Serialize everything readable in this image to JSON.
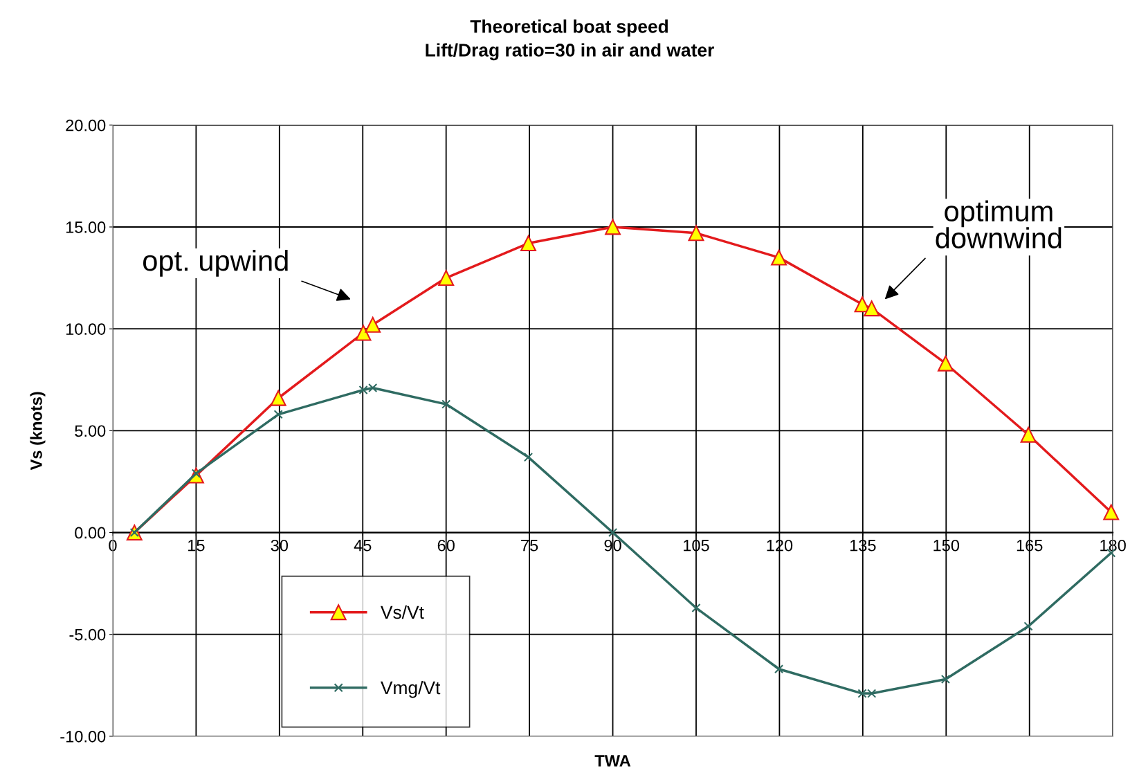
{
  "chart_data": {
    "type": "line",
    "title": "Theoretical boat speed",
    "subtitle": "Lift/Drag ratio=30 in air and water",
    "xlabel": "TWA",
    "ylabel": "Vs (knots)",
    "xlim": [
      0,
      180
    ],
    "xticks": [
      0,
      15,
      30,
      45,
      60,
      75,
      90,
      105,
      120,
      135,
      150,
      165,
      180
    ],
    "ylim": [
      -10,
      20
    ],
    "yticks": [
      {
        "value": -10,
        "label": "-10.00"
      },
      {
        "value": -5,
        "label": "-5.00"
      },
      {
        "value": 0,
        "label": "0.00"
      },
      {
        "value": 5,
        "label": "5.00"
      },
      {
        "value": 10,
        "label": "10.00"
      },
      {
        "value": 15,
        "label": "15.00"
      },
      {
        "value": 20,
        "label": "20.00"
      }
    ],
    "grid": true,
    "legend": "bottom left",
    "x": [
      3.9,
      15,
      29.8,
      45.1,
      46.8,
      60,
      74.8,
      90,
      105,
      119.9,
      134.9,
      136.6,
      149.9,
      164.8,
      179.7
    ],
    "series": [
      {
        "name": "Vs/Vt",
        "color": "#e31a1c",
        "marker": "triangle",
        "values": [
          0,
          2.8,
          6.6,
          9.8,
          10.2,
          12.5,
          14.2,
          15.0,
          14.7,
          13.5,
          11.2,
          11.0,
          8.3,
          4.8,
          1.0
        ]
      },
      {
        "name": "Vmg/Vt",
        "color": "#2f6b62",
        "marker": "cross",
        "values": [
          0,
          2.9,
          5.8,
          7.0,
          7.1,
          6.3,
          3.7,
          0,
          -3.7,
          -6.7,
          -7.9,
          -7.9,
          -7.2,
          -4.6,
          -1.0
        ]
      }
    ],
    "annotations": [
      "opt. upwind",
      "optimum\ndownwind"
    ]
  }
}
